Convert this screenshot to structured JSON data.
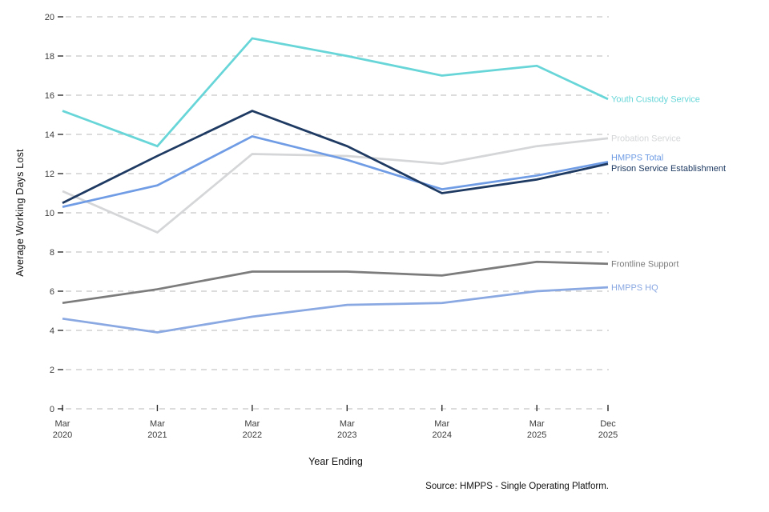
{
  "chart_data": {
    "type": "line",
    "title": "",
    "xlabel": "Year Ending",
    "ylabel": "Average Working Days Lost",
    "source": "Source: HMPPS - Single Operating Platform.",
    "ylim": [
      0,
      20
    ],
    "ytick_step": 2,
    "grid": "horizontal dashed gridlines",
    "legend_position": "labels at right line ends",
    "categories": [
      "Mar 2020",
      "Mar 2021",
      "Mar 2022",
      "Mar 2023",
      "Mar 2024",
      "Mar 2025",
      "Dec 2025"
    ],
    "x_positions_years": [
      2020.25,
      2021.25,
      2022.25,
      2023.25,
      2024.25,
      2025.25,
      2026.0
    ],
    "series": [
      {
        "name": "Youth Custody Service",
        "color": "#68d6d8",
        "values": [
          15.2,
          13.4,
          18.9,
          18.0,
          17.0,
          17.5,
          15.8
        ]
      },
      {
        "name": "Probation Service",
        "color": "#d4d6d8",
        "values": [
          11.1,
          9.0,
          13.0,
          12.9,
          12.5,
          13.4,
          13.8
        ]
      },
      {
        "name": "HMPPS Total",
        "color": "#6f9ce4",
        "values": [
          10.3,
          11.4,
          13.9,
          12.7,
          11.2,
          11.9,
          12.6
        ]
      },
      {
        "name": "Prison Service Establishment",
        "color": "#1e3a62",
        "values": [
          10.5,
          12.9,
          15.2,
          13.4,
          11.0,
          11.7,
          12.5
        ]
      },
      {
        "name": "Frontline Support",
        "color": "#7c7c7c",
        "values": [
          5.4,
          6.1,
          7.0,
          7.0,
          6.8,
          7.5,
          7.4
        ]
      },
      {
        "name": "HMPPS HQ",
        "color": "#8aa8e2",
        "values": [
          4.6,
          3.9,
          4.7,
          5.3,
          5.4,
          6.0,
          6.2
        ]
      }
    ]
  },
  "colors": {
    "background": "#ffffff",
    "gridline": "#c7c7c7",
    "tick_mark": "#2f2f2f",
    "tick_label": "#3d3d3d",
    "axis_title": "#111111"
  }
}
